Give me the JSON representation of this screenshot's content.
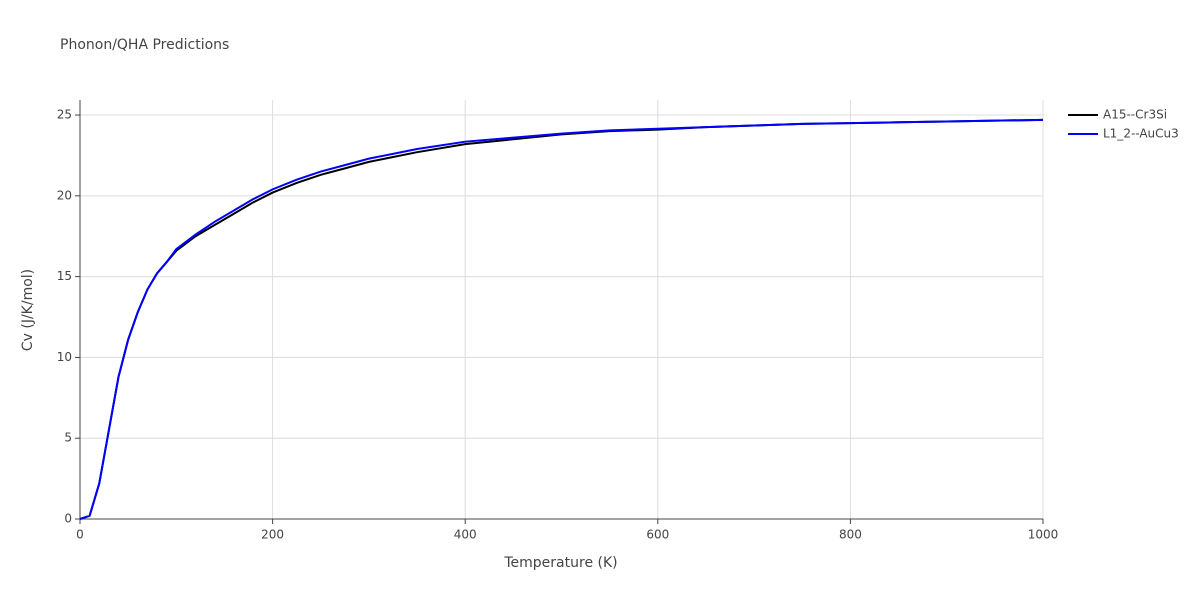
{
  "chart_data": {
    "type": "line",
    "title": "Phonon/QHA Predictions",
    "x_label": "Temperature (K)",
    "y_label": "Cv (J/K/mol)",
    "x": [
      0,
      10,
      20,
      30,
      40,
      50,
      60,
      70,
      80,
      90,
      100,
      120,
      140,
      160,
      180,
      200,
      225,
      250,
      275,
      300,
      350,
      400,
      450,
      500,
      550,
      600,
      650,
      700,
      750,
      800,
      850,
      900,
      950,
      1000
    ],
    "series": [
      {
        "name": "A15--Cr3Si",
        "color": "#000000",
        "values": [
          0,
          0.2,
          2.2,
          5.5,
          8.8,
          11.1,
          12.8,
          14.2,
          15.2,
          15.9,
          16.6,
          17.5,
          18.2,
          18.9,
          19.6,
          20.2,
          20.8,
          21.3,
          21.7,
          22.1,
          22.7,
          23.2,
          23.5,
          23.8,
          24.0,
          24.1,
          24.25,
          24.35,
          24.45,
          24.5,
          24.55,
          24.6,
          24.65,
          24.7
        ]
      },
      {
        "name": "L1_2--AuCu3",
        "color": "#0000ff",
        "values": [
          0,
          0.2,
          2.2,
          5.5,
          8.8,
          11.1,
          12.8,
          14.2,
          15.2,
          15.9,
          16.7,
          17.6,
          18.4,
          19.1,
          19.8,
          20.4,
          21.0,
          21.5,
          21.9,
          22.3,
          22.9,
          23.35,
          23.6,
          23.85,
          24.05,
          24.15,
          24.25,
          24.35,
          24.45,
          24.5,
          24.55,
          24.6,
          24.65,
          24.7
        ]
      }
    ],
    "xlim": [
      0,
      1000
    ],
    "xticks": [
      0,
      200,
      400,
      600,
      800,
      1000
    ],
    "ylim": [
      0,
      25.93
    ],
    "yticks": [
      0,
      5,
      10,
      15,
      20,
      25
    ],
    "grid": true,
    "legend": "top-right"
  }
}
